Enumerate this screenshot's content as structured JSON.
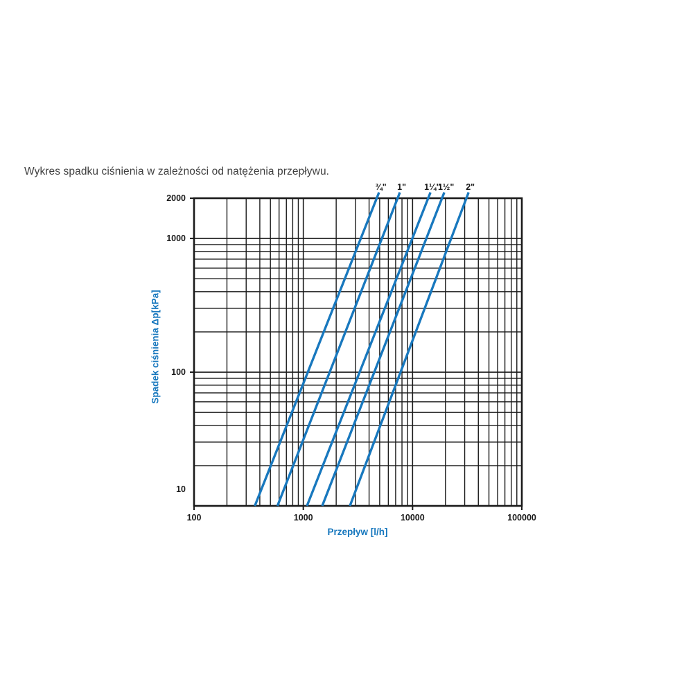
{
  "title": "Wykres spadku ciśnienia w zależności od natężenia przepływu.",
  "colors": {
    "accent_blue": "#1878be",
    "grid_black": "#1a1a1a",
    "title_gray": "#3f3f3f",
    "background": "#ffffff"
  },
  "chart_data": {
    "type": "line",
    "title": "Wykres spadku ciśnienia w zależności od natężenia przepływu.",
    "xlabel": "Przepływ [l/h]",
    "ylabel": "Spadek ciśnienia Δp[kPa]",
    "x_axis": {
      "label": "Przepływ [l/h]",
      "scale": "log",
      "min": 100,
      "max": 100000,
      "major_ticks": [
        100,
        1000,
        10000,
        100000
      ],
      "major_tick_labels": [
        "100",
        "1000",
        "10000",
        "100000"
      ],
      "minor_ticks": [
        200,
        300,
        400,
        500,
        600,
        700,
        800,
        900,
        2000,
        3000,
        4000,
        5000,
        6000,
        7000,
        8000,
        9000,
        20000,
        30000,
        40000,
        50000,
        60000,
        70000,
        80000,
        90000
      ]
    },
    "y_axis": {
      "label": "Spadek ciśnienia Δp[kPa]",
      "scale": "log",
      "min": 10,
      "max": 2000,
      "major_ticks": [
        10,
        100,
        1000,
        2000
      ],
      "major_tick_labels": [
        "10",
        "100",
        "1000",
        "2000"
      ],
      "minor_ticks": [
        20,
        30,
        40,
        50,
        60,
        70,
        80,
        90,
        200,
        300,
        400,
        500,
        600,
        700,
        800,
        900
      ]
    },
    "grid": true,
    "legend_position": "top-labels",
    "line_color": "#1878be",
    "series": [
      {
        "name": "3/4-inch",
        "label": "¾\"",
        "points": [
          [
            360,
            10
          ],
          [
            4700,
            2000
          ]
        ]
      },
      {
        "name": "1-inch",
        "label": "1\"",
        "points": [
          [
            580,
            10
          ],
          [
            7300,
            2000
          ]
        ]
      },
      {
        "name": "1-1/4-inch",
        "label": "1¼\"",
        "points": [
          [
            1080,
            10
          ],
          [
            13900,
            2000
          ]
        ]
      },
      {
        "name": "1-1/2-inch",
        "label": "1½\"",
        "points": [
          [
            1490,
            10
          ],
          [
            18600,
            2000
          ]
        ]
      },
      {
        "name": "2-inch",
        "label": "2\"",
        "points": [
          [
            2670,
            10
          ],
          [
            31100,
            2000
          ]
        ]
      }
    ]
  }
}
